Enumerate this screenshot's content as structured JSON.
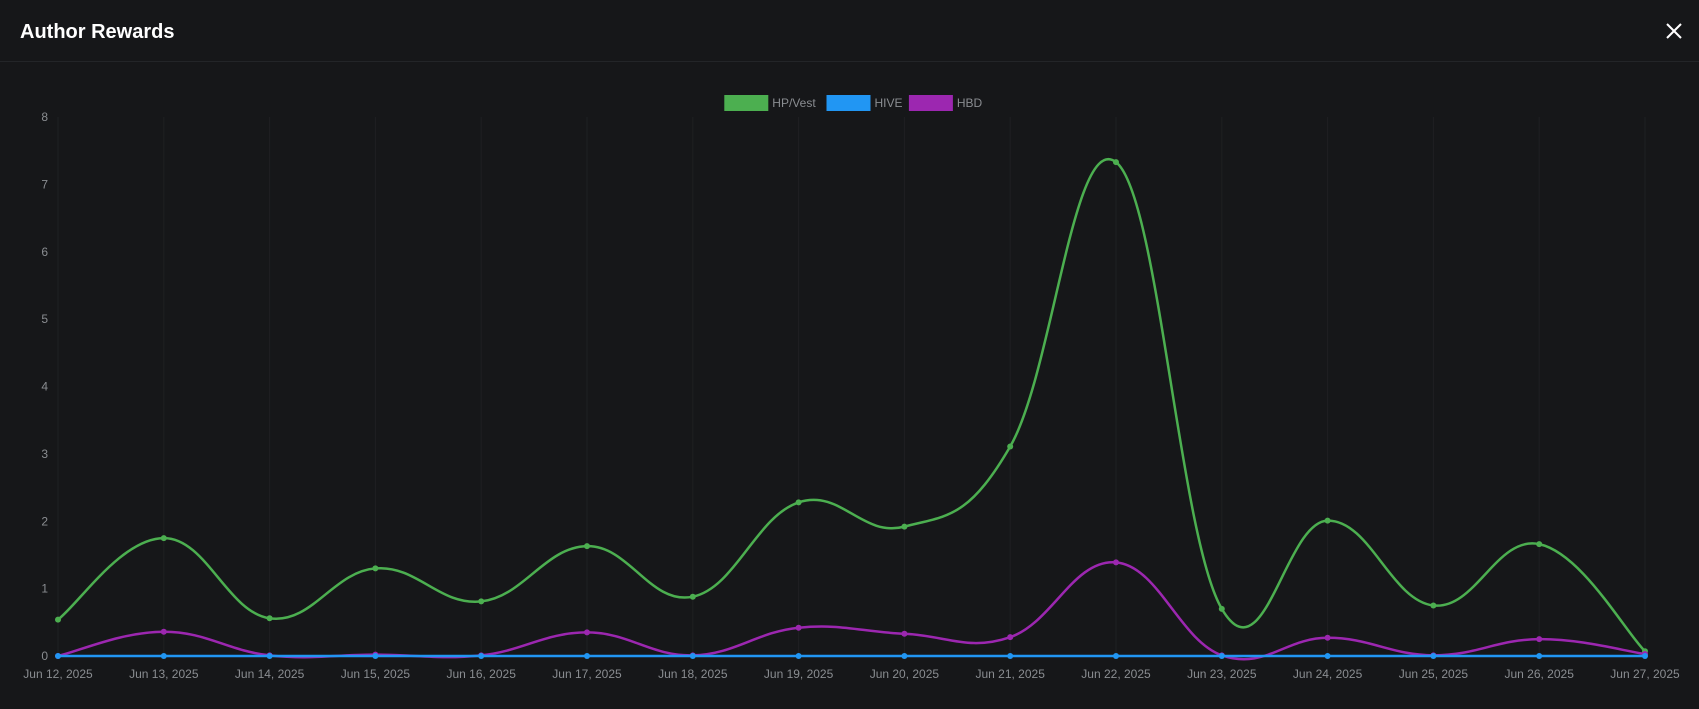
{
  "modal": {
    "title": "Author Rewards",
    "close_icon": "close-icon"
  },
  "colors": {
    "background": "#161719",
    "grid": "#1f2022",
    "axis_text": "#8a8d91",
    "legend_text": "#8a8d91"
  },
  "chart_data": {
    "type": "line",
    "title": "",
    "xlabel": "",
    "ylabel": "",
    "categories": [
      "Jun 12, 2025",
      "Jun 13, 2025",
      "Jun 14, 2025",
      "Jun 15, 2025",
      "Jun 16, 2025",
      "Jun 17, 2025",
      "Jun 18, 2025",
      "Jun 19, 2025",
      "Jun 20, 2025",
      "Jun 21, 2025",
      "Jun 22, 2025",
      "Jun 23, 2025",
      "Jun 24, 2025",
      "Jun 25, 2025",
      "Jun 26, 2025",
      "Jun 27, 2025"
    ],
    "ylim": [
      0,
      8
    ],
    "yticks": [
      0,
      1,
      2,
      3,
      4,
      5,
      6,
      7,
      8
    ],
    "grid": true,
    "legend_position": "top-center",
    "series": [
      {
        "name": "HP/Vest",
        "color": "#4caf50",
        "values": [
          0.54,
          1.75,
          0.56,
          1.3,
          0.81,
          1.63,
          0.88,
          2.28,
          1.92,
          3.11,
          7.33,
          0.7,
          2.01,
          0.75,
          1.66,
          0.07
        ]
      },
      {
        "name": "HIVE",
        "color": "#2196f3",
        "values": [
          0,
          0,
          0,
          0,
          0,
          0,
          0,
          0,
          0,
          0,
          0,
          0,
          0,
          0,
          0,
          0
        ]
      },
      {
        "name": "HBD",
        "color": "#9c27b0",
        "values": [
          0,
          0.36,
          0.01,
          0.02,
          0.01,
          0.35,
          0.01,
          0.42,
          0.33,
          0.28,
          1.39,
          0.01,
          0.27,
          0.01,
          0.25,
          0.03
        ]
      }
    ]
  }
}
